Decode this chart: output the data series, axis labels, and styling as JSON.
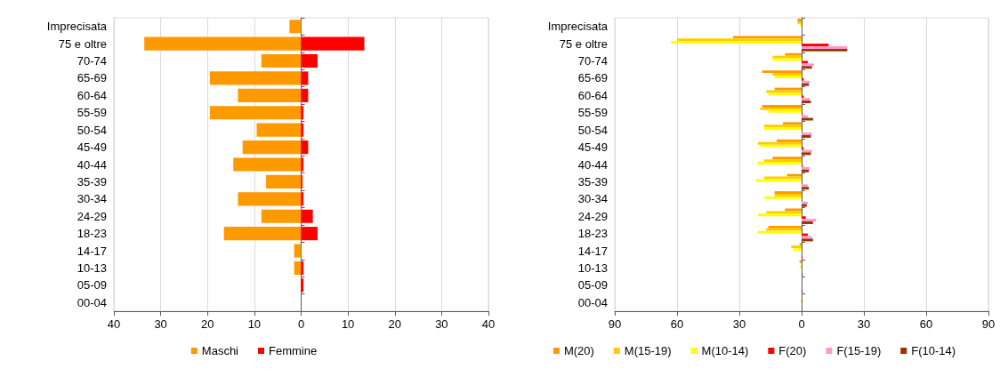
{
  "chart_data": [
    {
      "type": "bar",
      "orientation": "horizontal",
      "categories": [
        "Imprecisata",
        "75 e oltre",
        "70-74",
        "65-69",
        "60-64",
        "55-59",
        "50-54",
        "45-49",
        "40-44",
        "35-39",
        "30-34",
        "24-29",
        "18-23",
        "14-17",
        "10-13",
        "05-09",
        "00-04"
      ],
      "series": [
        {
          "name": "Maschi",
          "color": "#ff9900",
          "values": [
            -2.5,
            -33.5,
            -8.5,
            -19.5,
            -13.5,
            -19.5,
            -9.5,
            -12.5,
            -14.5,
            -7.5,
            -13.5,
            -8.5,
            -16.5,
            -1.5,
            -1.5,
            0,
            0
          ]
        },
        {
          "name": "Femmine",
          "color": "#ff0000",
          "values": [
            0,
            13.5,
            3.5,
            1.5,
            1.5,
            0.5,
            0.5,
            1.5,
            0.5,
            0.3,
            0.5,
            2.5,
            3.5,
            0,
            0.5,
            0.5,
            0
          ]
        }
      ],
      "xlim": [
        -40,
        40
      ],
      "xticks": [
        {
          "value": -40,
          "label": "40"
        },
        {
          "value": -30,
          "label": "30"
        },
        {
          "value": -20,
          "label": "20"
        },
        {
          "value": -10,
          "label": "10"
        },
        0,
        10,
        20,
        30,
        40
      ],
      "grid": "x",
      "legend": "bottom",
      "stacked": true
    },
    {
      "type": "bar",
      "orientation": "horizontal",
      "categories": [
        "Imprecisata",
        "75 e oltre",
        "70-74",
        "65-69",
        "60-64",
        "55-59",
        "50-54",
        "45-49",
        "40-44",
        "35-39",
        "30-34",
        "24-29",
        "18-23",
        "14-17",
        "10-13",
        "05-09",
        "00-04"
      ],
      "series": [
        {
          "name": "M(20)",
          "color": "#ff9900",
          "values": [
            -2,
            -33,
            -8,
            -19,
            -13,
            -19,
            -9,
            -12,
            -14,
            -7,
            -13,
            -8,
            -16,
            -1,
            -1,
            0,
            0
          ]
        },
        {
          "name": "M(15-19)",
          "color": "#ffcc00",
          "values": [
            -2,
            -60,
            -14,
            -14,
            -17,
            -20,
            -18,
            -21,
            -18,
            -18,
            -13,
            -17,
            -17,
            -5,
            0,
            0,
            0
          ]
        },
        {
          "name": "M(10-14)",
          "color": "#ffff00",
          "values": [
            -1,
            -63,
            -14,
            -13,
            -16,
            -16,
            -18,
            -20,
            -21,
            -22,
            -18,
            -21,
            -21,
            -4,
            -1,
            0,
            -0.5
          ]
        },
        {
          "name": "F(20)",
          "color": "#ff0000",
          "values": [
            0,
            13,
            3,
            1,
            1,
            0.5,
            0,
            1,
            0.5,
            0,
            0,
            2,
            3,
            0,
            0,
            0,
            0
          ]
        },
        {
          "name": "F(15-19)",
          "color": "#ff99cc",
          "values": [
            0,
            22,
            6,
            4,
            4,
            3,
            5,
            5,
            4,
            3,
            3,
            7,
            5,
            0,
            0,
            0,
            0
          ]
        },
        {
          "name": "F(10-14)",
          "color": "#993300",
          "values": [
            0,
            22,
            5,
            3.5,
            4.5,
            5.5,
            4.5,
            4.5,
            3.5,
            3.5,
            2.5,
            5.5,
            5.5,
            0.5,
            0.5,
            0.5,
            0
          ]
        }
      ],
      "xlim": [
        -90,
        90
      ],
      "xticks": [
        {
          "value": -90,
          "label": "90"
        },
        {
          "value": -60,
          "label": "60"
        },
        {
          "value": -30,
          "label": "30"
        },
        0,
        30,
        60,
        90
      ],
      "grid": "x",
      "legend": "bottom"
    }
  ]
}
